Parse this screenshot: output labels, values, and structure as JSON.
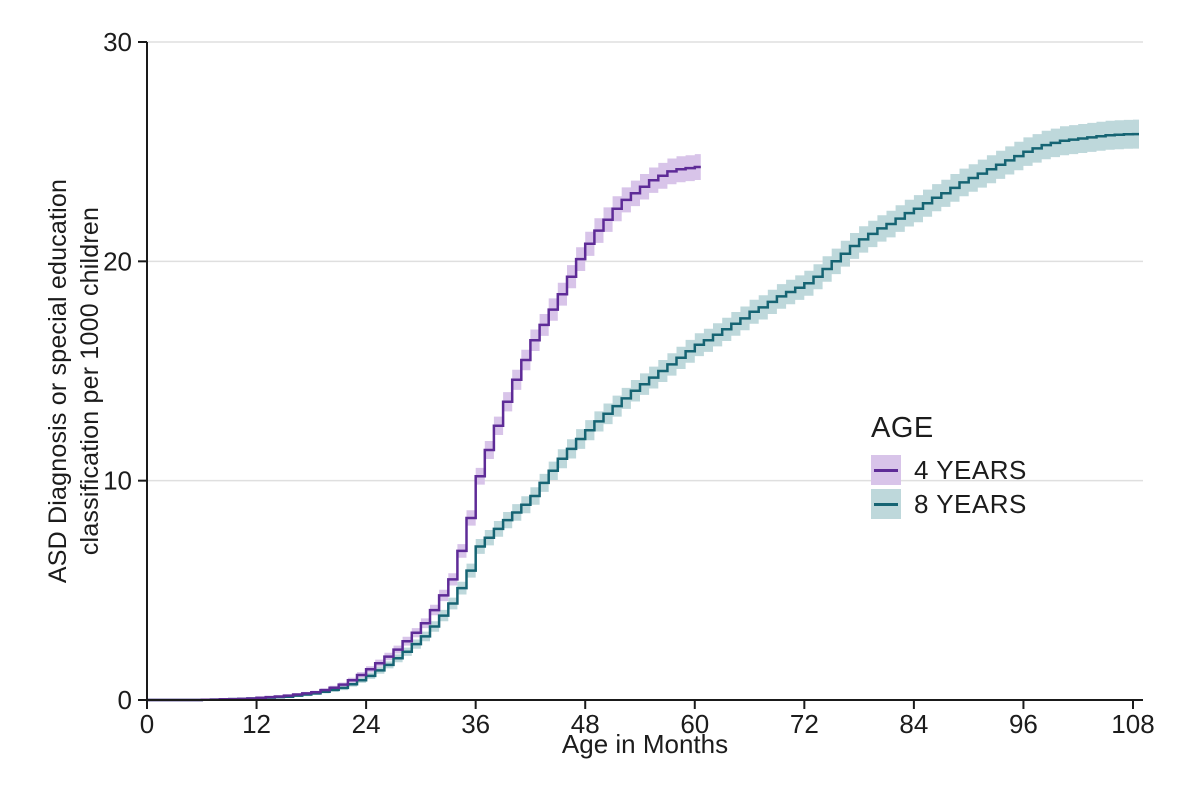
{
  "y_axis": {
    "title_line1": "ASD Diagnosis or special education",
    "title_line2": "classification per 1000 children",
    "ticks": [
      0,
      10,
      20,
      30
    ],
    "range": [
      0,
      30
    ]
  },
  "x_axis": {
    "title": "Age in Months",
    "ticks": [
      0,
      12,
      24,
      36,
      48,
      60,
      72,
      84,
      96,
      108
    ],
    "range": [
      0,
      108
    ]
  },
  "legend": {
    "title": "AGE",
    "items": [
      {
        "label": "4 YEARS",
        "line_color": "#5e2b97",
        "band_color": "#d8c4e9"
      },
      {
        "label": "8 YEARS",
        "line_color": "#166473",
        "band_color": "#bed8db"
      }
    ]
  },
  "colors": {
    "axis": "#1a1a1a",
    "grid": "#dfdfdf",
    "text": "#1c1c1c",
    "background": "#ffffff"
  },
  "chart_data": {
    "type": "line",
    "subtype": "step-cumulative-incidence-with-ci-band",
    "title": "",
    "xlabel": "Age in Months",
    "ylabel": "ASD Diagnosis or special education classification per 1000 children",
    "xlim": [
      0,
      108
    ],
    "ylim": [
      0,
      30
    ],
    "grid": "horizontal",
    "legend_position": "right-middle",
    "x_unit": "months",
    "series": [
      {
        "name": "4 YEARS",
        "color": "#5e2b97",
        "band_color": "#d8c4e9",
        "months": [
          0,
          1,
          2,
          3,
          4,
          5,
          6,
          7,
          8,
          9,
          10,
          11,
          12,
          13,
          14,
          15,
          16,
          17,
          18,
          19,
          20,
          21,
          22,
          23,
          24,
          25,
          26,
          27,
          28,
          29,
          30,
          31,
          32,
          33,
          34,
          35,
          36,
          37,
          38,
          39,
          40,
          41,
          42,
          43,
          44,
          45,
          46,
          47,
          48,
          49,
          50,
          51,
          52,
          53,
          54,
          55,
          56,
          57,
          58,
          59,
          60
        ],
        "values": [
          0,
          0,
          0,
          0,
          0,
          0,
          0.01,
          0.02,
          0.03,
          0.04,
          0.05,
          0.07,
          0.1,
          0.13,
          0.16,
          0.2,
          0.25,
          0.3,
          0.35,
          0.45,
          0.56,
          0.7,
          0.9,
          1.14,
          1.4,
          1.68,
          1.98,
          2.3,
          2.68,
          3.07,
          3.5,
          4.1,
          4.77,
          5.5,
          6.8,
          8.3,
          10.2,
          11.4,
          12.5,
          13.6,
          14.6,
          15.5,
          16.4,
          17.1,
          17.8,
          18.5,
          19.3,
          20.1,
          20.8,
          21.4,
          21.9,
          22.4,
          22.8,
          23.1,
          23.4,
          23.7,
          23.9,
          24.1,
          24.2,
          24.25,
          24.3
        ],
        "ci_halfwidth": [
          0,
          0,
          0,
          0,
          0,
          0,
          0.01,
          0.02,
          0.02,
          0.02,
          0.03,
          0.03,
          0.04,
          0.04,
          0.05,
          0.05,
          0.06,
          0.07,
          0.07,
          0.08,
          0.09,
          0.1,
          0.11,
          0.13,
          0.14,
          0.16,
          0.17,
          0.18,
          0.2,
          0.21,
          0.22,
          0.24,
          0.26,
          0.28,
          0.31,
          0.35,
          0.38,
          0.41,
          0.42,
          0.44,
          0.46,
          0.47,
          0.49,
          0.5,
          0.51,
          0.52,
          0.53,
          0.54,
          0.55,
          0.56,
          0.56,
          0.57,
          0.57,
          0.58,
          0.58,
          0.58,
          0.59,
          0.59,
          0.59,
          0.59,
          0.59
        ]
      },
      {
        "name": "8 YEARS",
        "color": "#166473",
        "band_color": "#bed8db",
        "months": [
          0,
          1,
          2,
          3,
          4,
          5,
          6,
          7,
          8,
          9,
          10,
          11,
          12,
          13,
          14,
          15,
          16,
          17,
          18,
          19,
          20,
          21,
          22,
          23,
          24,
          25,
          26,
          27,
          28,
          29,
          30,
          31,
          32,
          33,
          34,
          35,
          36,
          37,
          38,
          39,
          40,
          41,
          42,
          43,
          44,
          45,
          46,
          47,
          48,
          49,
          50,
          51,
          52,
          53,
          54,
          55,
          56,
          57,
          58,
          59,
          60,
          61,
          62,
          63,
          64,
          65,
          66,
          67,
          68,
          69,
          70,
          71,
          72,
          73,
          74,
          75,
          76,
          77,
          78,
          79,
          80,
          81,
          82,
          83,
          84,
          85,
          86,
          87,
          88,
          89,
          90,
          91,
          92,
          93,
          94,
          95,
          96,
          97,
          98,
          99,
          100,
          101,
          102,
          103,
          104,
          105,
          106,
          107,
          108
        ],
        "values": [
          0,
          0,
          0,
          0,
          0,
          0,
          0.01,
          0.02,
          0.03,
          0.04,
          0.05,
          0.07,
          0.1,
          0.11,
          0.13,
          0.15,
          0.2,
          0.25,
          0.3,
          0.38,
          0.46,
          0.55,
          0.72,
          0.9,
          1.1,
          1.35,
          1.6,
          1.9,
          2.2,
          2.55,
          2.9,
          3.35,
          3.85,
          4.4,
          5.1,
          5.9,
          7.0,
          7.4,
          7.8,
          8.2,
          8.55,
          8.9,
          9.3,
          9.9,
          10.45,
          11.0,
          11.45,
          11.9,
          12.3,
          12.7,
          13.05,
          13.4,
          13.75,
          14.1,
          14.4,
          14.7,
          15.0,
          15.3,
          15.6,
          15.9,
          16.2,
          16.4,
          16.65,
          16.9,
          17.15,
          17.4,
          17.7,
          17.9,
          18.15,
          18.4,
          18.6,
          18.8,
          19.0,
          19.3,
          19.65,
          20.0,
          20.35,
          20.7,
          21.0,
          21.25,
          21.5,
          21.7,
          21.95,
          22.2,
          22.4,
          22.65,
          22.9,
          23.1,
          23.35,
          23.6,
          23.8,
          24.0,
          24.2,
          24.4,
          24.6,
          24.8,
          25.0,
          25.15,
          25.3,
          25.4,
          25.5,
          25.55,
          25.6,
          25.65,
          25.7,
          25.75,
          25.77,
          25.79,
          25.8
        ],
        "ci_halfwidth": [
          0,
          0,
          0,
          0,
          0,
          0,
          0.01,
          0.02,
          0.02,
          0.03,
          0.03,
          0.03,
          0.04,
          0.04,
          0.05,
          0.05,
          0.06,
          0.07,
          0.07,
          0.08,
          0.09,
          0.1,
          0.11,
          0.12,
          0.14,
          0.15,
          0.16,
          0.18,
          0.19,
          0.21,
          0.22,
          0.24,
          0.26,
          0.27,
          0.29,
          0.32,
          0.34,
          0.35,
          0.36,
          0.37,
          0.38,
          0.39,
          0.4,
          0.41,
          0.42,
          0.43,
          0.44,
          0.45,
          0.46,
          0.46,
          0.47,
          0.48,
          0.48,
          0.49,
          0.49,
          0.5,
          0.5,
          0.51,
          0.51,
          0.52,
          0.52,
          0.53,
          0.53,
          0.53,
          0.54,
          0.54,
          0.55,
          0.55,
          0.55,
          0.56,
          0.56,
          0.56,
          0.57,
          0.57,
          0.58,
          0.58,
          0.59,
          0.59,
          0.6,
          0.6,
          0.6,
          0.61,
          0.61,
          0.61,
          0.62,
          0.62,
          0.62,
          0.62,
          0.63,
          0.63,
          0.63,
          0.64,
          0.64,
          0.64,
          0.64,
          0.65,
          0.65,
          0.65,
          0.65,
          0.65,
          0.66,
          0.66,
          0.66,
          0.66,
          0.66,
          0.66,
          0.66,
          0.66,
          0.66
        ]
      }
    ]
  }
}
